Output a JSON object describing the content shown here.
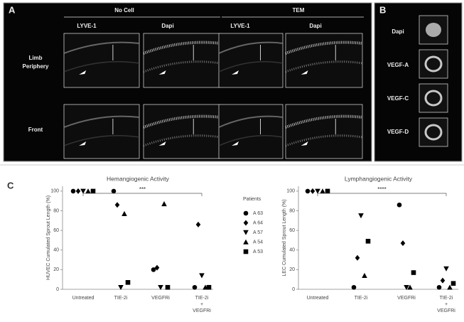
{
  "panels": {
    "a": {
      "label": "A",
      "groups": [
        "No Cell",
        "TEM"
      ],
      "columns": [
        "LYVE-1",
        "Dapi",
        "LYVE-1",
        "Dapi"
      ],
      "rows": [
        [
          "Limb",
          "Periphery"
        ],
        [
          "Front"
        ]
      ]
    },
    "b": {
      "label": "B",
      "rows": [
        "Dapi",
        "VEGF-A",
        "VEGF-C",
        "VEGF-D"
      ]
    },
    "c": {
      "label": "C"
    }
  },
  "chart_data": [
    {
      "type": "scatter",
      "title": "Hemangiogenic Activity",
      "y_label": "HUVEC Cumulated Sprout Length (%)",
      "categories": [
        [
          "Untreated"
        ],
        [
          "TIE-2i"
        ],
        [
          "VEGFRi"
        ],
        [
          "TIE-2i",
          "+",
          "VEGFRi"
        ]
      ],
      "ylim": [
        0,
        105
      ],
      "yticks": [
        0,
        20,
        40,
        60,
        80,
        100
      ],
      "annotations": [
        {
          "text": "***"
        }
      ],
      "legend": "right",
      "legend_title": "Patients",
      "series": [
        {
          "name": "A 63",
          "marker": "circle",
          "color": "#000",
          "values": [
            100,
            100,
            20,
            2
          ]
        },
        {
          "name": "A 64",
          "marker": "diamond",
          "color": "#000",
          "values": [
            100,
            86,
            22,
            66
          ]
        },
        {
          "name": "A 57",
          "marker": "triangle-down",
          "color": "#000",
          "values": [
            100,
            2,
            2,
            14
          ]
        },
        {
          "name": "A 54",
          "marker": "triangle-up",
          "color": "#000",
          "values": [
            100,
            77,
            87,
            2
          ]
        },
        {
          "name": "A 53",
          "marker": "square",
          "color": "#000",
          "values": [
            100,
            7,
            2,
            2
          ]
        }
      ]
    },
    {
      "type": "scatter",
      "title": "Lymphangiogenic Activity",
      "y_label": "LEC Cumulated Sprout Length (%)",
      "categories": [
        [
          "Untreated"
        ],
        [
          "TIE-2i"
        ],
        [
          "VEGFRi"
        ],
        [
          "TIE-2i",
          "+",
          "VEGFRi"
        ]
      ],
      "ylim": [
        0,
        105
      ],
      "yticks": [
        0,
        20,
        40,
        60,
        80,
        100
      ],
      "annotations": [
        {
          "text": "****"
        }
      ],
      "series": [
        {
          "marker": "circle",
          "color": "#000",
          "values": [
            100,
            2,
            86,
            2
          ]
        },
        {
          "marker": "diamond",
          "color": "#000",
          "values": [
            100,
            32,
            47,
            9
          ]
        },
        {
          "marker": "triangle-down",
          "color": "#000",
          "values": [
            100,
            75,
            2,
            21
          ]
        },
        {
          "marker": "triangle-up",
          "color": "#000",
          "values": [
            100,
            14,
            2,
            2
          ]
        },
        {
          "marker": "square",
          "color": "#000",
          "values": [
            100,
            49,
            17,
            6
          ]
        }
      ]
    }
  ]
}
